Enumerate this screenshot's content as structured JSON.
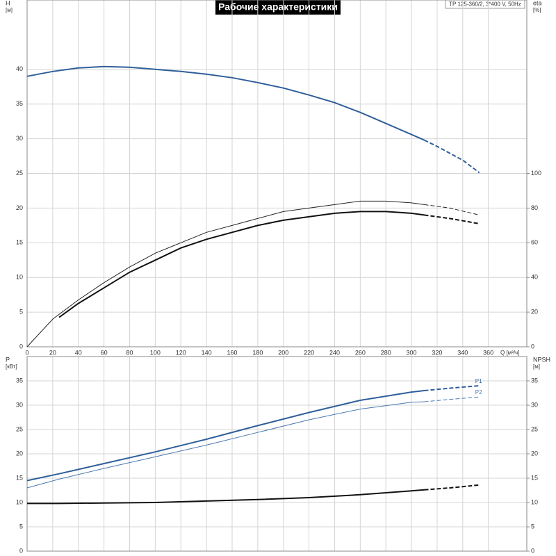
{
  "chart_data": [
    {
      "type": "line",
      "title": "Рабочие характеристики",
      "subtitle": "TP 125-360/2, 3*400 V, 50Hz",
      "ylabel": "H",
      "yunit": "[м]",
      "y2label": "eta",
      "y2unit": "[%]",
      "xlabel": "Q [м³/ч]",
      "xlim": [
        0,
        390
      ],
      "xticks": [
        0,
        20,
        40,
        60,
        80,
        100,
        120,
        140,
        160,
        180,
        200,
        220,
        240,
        260,
        280,
        300,
        320,
        340,
        360
      ],
      "ylim": [
        0,
        50
      ],
      "yticks": [
        0,
        5,
        10,
        15,
        20,
        25,
        30,
        35,
        40
      ],
      "y2lim": [
        0,
        200
      ],
      "y2ticks": [
        0,
        20,
        40,
        60,
        80,
        100
      ],
      "grid": true,
      "series": [
        {
          "color": "#2f5f99",
          "width": 2,
          "dash": false,
          "axis": "y",
          "x": [
            0,
            20,
            40,
            60,
            80,
            100,
            120,
            140,
            160,
            180,
            200,
            220,
            240,
            260,
            280,
            300,
            310
          ],
          "values": [
            39,
            39.7,
            40.2,
            40.4,
            40.3,
            40.0,
            39.7,
            39.3,
            38.8,
            38.1,
            37.3,
            36.3,
            35.2,
            33.8,
            32.2,
            30.6,
            29.8
          ]
        },
        {
          "color": "#2f5f99",
          "width": 2,
          "dash": true,
          "axis": "y",
          "x": [
            310,
            320,
            340,
            353
          ],
          "values": [
            29.8,
            28.9,
            26.9,
            25.1
          ]
        },
        {
          "color": "#222222",
          "width": 1,
          "dash": false,
          "axis": "y2",
          "x": [
            0,
            20,
            40,
            60,
            80,
            100,
            120,
            140,
            160,
            180,
            200,
            220,
            240,
            260,
            280,
            300,
            310
          ],
          "values": [
            0,
            16,
            27,
            37,
            46,
            54,
            60,
            66,
            70,
            74,
            78,
            80,
            82,
            84,
            84,
            83,
            82
          ]
        },
        {
          "color": "#222222",
          "width": 1,
          "dash": true,
          "axis": "y2",
          "x": [
            310,
            330,
            353
          ],
          "values": [
            82,
            80,
            76
          ]
        },
        {
          "color": "#111111",
          "width": 2,
          "dash": false,
          "axis": "y2",
          "x": [
            25,
            40,
            60,
            80,
            100,
            120,
            140,
            160,
            180,
            200,
            220,
            240,
            260,
            280,
            300,
            310
          ],
          "values": [
            17,
            25,
            34,
            43,
            50,
            57,
            62,
            66,
            70,
            73,
            75,
            77,
            78,
            78,
            77,
            76
          ]
        },
        {
          "color": "#111111",
          "width": 2,
          "dash": true,
          "axis": "y2",
          "x": [
            310,
            330,
            353
          ],
          "values": [
            76,
            74,
            71
          ]
        }
      ]
    },
    {
      "type": "line",
      "ylabel": "P",
      "yunit": "[кВт]",
      "y2label": "NPSH",
      "y2unit": "[м]",
      "xlim": [
        0,
        390
      ],
      "xticks": [
        0,
        20,
        40,
        60,
        80,
        100,
        120,
        140,
        160,
        180,
        200,
        220,
        240,
        260,
        280,
        300,
        320,
        340,
        360
      ],
      "ylim": [
        0,
        40
      ],
      "yticks": [
        0,
        5,
        10,
        15,
        20,
        25,
        30,
        35
      ],
      "y2lim": [
        0,
        40
      ],
      "y2ticks": [
        0,
        5,
        10,
        15,
        20,
        25,
        30,
        35
      ],
      "grid": true,
      "series": [
        {
          "color": "#2f5f99",
          "width": 2,
          "dash": false,
          "axis": "y",
          "x": [
            0,
            25,
            60,
            100,
            140,
            180,
            220,
            260,
            300,
            310
          ],
          "values": [
            14.5,
            15.9,
            18,
            20.4,
            23,
            25.8,
            28.5,
            31,
            32.7,
            33.0
          ]
        },
        {
          "name": "P1",
          "color": "#2f5f99",
          "width": 2,
          "dash": true,
          "axis": "y",
          "x": [
            310,
            330,
            353
          ],
          "values": [
            33.0,
            33.5,
            34.0
          ]
        },
        {
          "color": "#4a78b0",
          "width": 1,
          "dash": false,
          "axis": "y",
          "x": [
            0,
            25,
            60,
            100,
            140,
            180,
            220,
            260,
            300,
            310
          ],
          "values": [
            13,
            14.8,
            17,
            19.4,
            21.8,
            24.4,
            27,
            29.2,
            30.6,
            30.7
          ]
        },
        {
          "name": "P2",
          "color": "#4a78b0",
          "width": 1,
          "dash": true,
          "axis": "y",
          "x": [
            310,
            330,
            353
          ],
          "values": [
            30.7,
            31.2,
            31.7
          ]
        },
        {
          "color": "#111111",
          "width": 2,
          "dash": false,
          "axis": "y2",
          "x": [
            0,
            25,
            60,
            100,
            140,
            180,
            220,
            260,
            300,
            310
          ],
          "values": [
            9.8,
            9.8,
            9.9,
            10.0,
            10.3,
            10.6,
            11.0,
            11.6,
            12.4,
            12.6
          ]
        },
        {
          "color": "#111111",
          "width": 2,
          "dash": true,
          "axis": "y2",
          "x": [
            310,
            330,
            353
          ],
          "values": [
            12.6,
            13.0,
            13.6
          ]
        }
      ]
    }
  ]
}
